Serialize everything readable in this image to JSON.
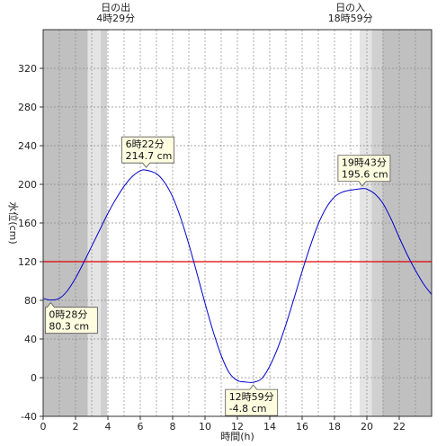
{
  "chart_data": {
    "type": "line",
    "xlabel": "時間(h)",
    "ylabel": "水位(cm)",
    "xlim": [
      0,
      24
    ],
    "ylim": [
      -40,
      360
    ],
    "xticks": [
      0,
      2,
      4,
      6,
      8,
      10,
      12,
      14,
      16,
      18,
      20,
      22
    ],
    "yticks": [
      -40,
      0,
      40,
      80,
      120,
      160,
      200,
      240,
      280,
      320
    ],
    "reference_line": {
      "value": 120,
      "color": "#e00000"
    },
    "shading": {
      "night_color": "#c0c0c0",
      "twilight_dark_color": "#d0d0d0",
      "twilight_light_color": "#e4e4e4",
      "bands": [
        {
          "from": 0,
          "to": 2.75,
          "kind": "night"
        },
        {
          "from": 2.75,
          "to": 3.55,
          "kind": "twilight_light"
        },
        {
          "from": 3.55,
          "to": 3.95,
          "kind": "twilight_dark"
        },
        {
          "from": 19.55,
          "to": 20.3,
          "kind": "twilight_light"
        },
        {
          "from": 20.3,
          "to": 20.95,
          "kind": "twilight_dark"
        },
        {
          "from": 20.95,
          "to": 24,
          "kind": "night"
        }
      ]
    },
    "series": [
      {
        "color": "#0000cc",
        "x": [
          0,
          0.467,
          1,
          1.5,
          2,
          2.5,
          3,
          3.5,
          4,
          4.5,
          5,
          5.5,
          6,
          6.367,
          7,
          7.5,
          8,
          8.5,
          9,
          9.5,
          10,
          10.5,
          11,
          11.5,
          12,
          12.5,
          12.983,
          13.5,
          14,
          14.5,
          15,
          15.5,
          16,
          16.5,
          17,
          17.5,
          18,
          18.5,
          19,
          19.717,
          20,
          20.5,
          21,
          21.5,
          22,
          22.5,
          23,
          23.5,
          24
        ],
        "y": [
          82,
          80.3,
          82,
          90,
          103,
          119,
          136,
          153,
          170,
          185,
          198,
          208,
          214,
          214.7,
          211,
          202,
          187,
          165,
          138,
          108,
          77,
          48,
          23,
          5,
          -3,
          -4.5,
          -4.8,
          -1,
          12,
          31,
          55,
          82,
          110,
          136,
          159,
          176,
          187,
          192,
          194,
          195.6,
          195,
          190,
          180,
          164,
          145,
          127,
          111,
          97,
          86
        ]
      }
    ],
    "annotations": {
      "sunrise": {
        "label": "日の出",
        "time": "4時29分",
        "x": 4.483
      },
      "sunset": {
        "label": "日の入",
        "time": "18時59分",
        "x": 18.983
      },
      "callouts": [
        {
          "time": "6時22分",
          "value": "214.7 cm",
          "x": 6.367,
          "y": 214.7,
          "type": "high"
        },
        {
          "time": "19時43分",
          "value": "195.6 cm",
          "x": 19.717,
          "y": 195.6,
          "type": "high"
        },
        {
          "time": "0時28分",
          "value": "80.3 cm",
          "x": 0.467,
          "y": 80.3,
          "type": "low"
        },
        {
          "time": "12時59分",
          "value": "-4.8 cm",
          "x": 12.983,
          "y": -4.8,
          "type": "low"
        }
      ]
    }
  }
}
